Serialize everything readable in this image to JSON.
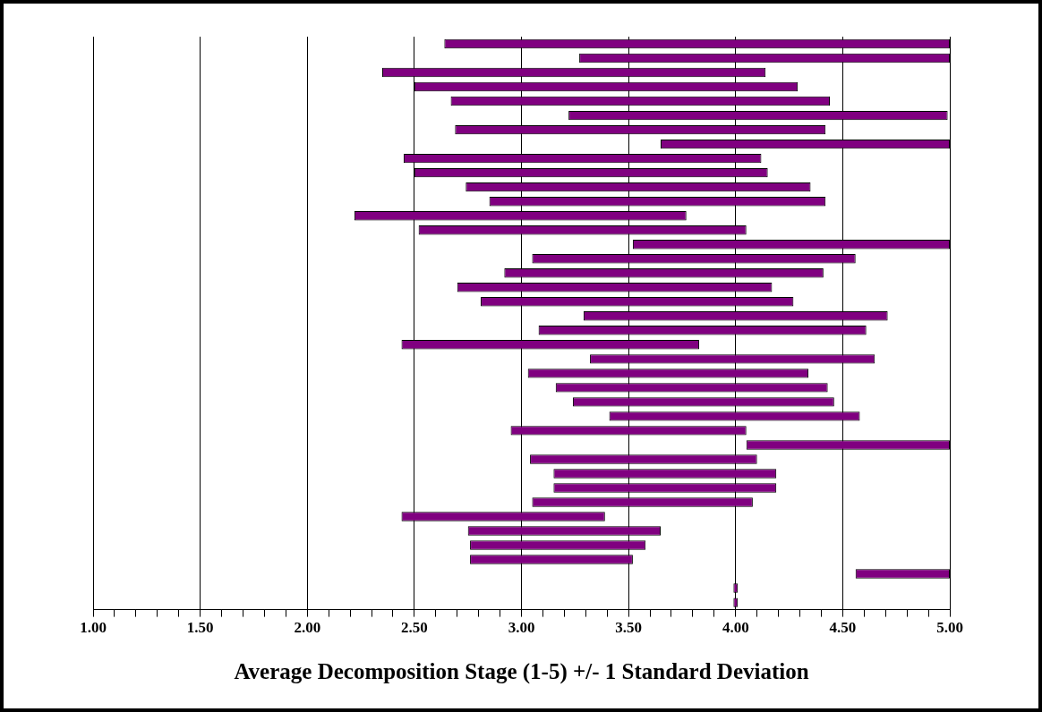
{
  "chart_data": {
    "type": "bar",
    "orientation": "horizontal",
    "xlabel": "Average Decomposition Stage (1-5) +/- 1 Standard Deviation",
    "categories": [
      null,
      null,
      null,
      null,
      null,
      null,
      null,
      null,
      null,
      null,
      null,
      null,
      null,
      null,
      null,
      null,
      null,
      null,
      null,
      null,
      null,
      null,
      null,
      null,
      null,
      null,
      null,
      null,
      null,
      null,
      null,
      null,
      null,
      null,
      null,
      null,
      null,
      null,
      null,
      null
    ],
    "base": [
      2.64,
      3.27,
      2.35,
      2.5,
      2.67,
      3.22,
      2.69,
      3.65,
      2.45,
      2.5,
      2.74,
      2.85,
      2.22,
      2.52,
      3.52,
      3.05,
      2.92,
      2.7,
      2.81,
      3.29,
      3.08,
      2.44,
      3.32,
      3.03,
      3.16,
      3.24,
      3.41,
      2.95,
      4.05,
      3.04,
      3.15,
      3.15,
      3.05,
      2.44,
      2.75,
      2.76,
      2.76,
      4.56,
      3.99,
      3.99
    ],
    "values": [
      2.36,
      1.73,
      1.79,
      1.79,
      1.77,
      1.77,
      1.73,
      1.35,
      1.67,
      1.65,
      1.61,
      1.57,
      1.55,
      1.53,
      1.48,
      1.51,
      1.49,
      1.47,
      1.46,
      1.42,
      1.53,
      1.39,
      1.33,
      1.31,
      1.27,
      1.22,
      1.17,
      1.1,
      0.95,
      1.06,
      1.04,
      1.04,
      1.03,
      0.95,
      0.9,
      0.82,
      0.76,
      0.44,
      0.02,
      0.02
    ],
    "color": "#800080",
    "xlim": [
      1,
      5
    ],
    "xticks": [
      "1.00",
      {
        "value": 1.1,
        "label": null
      },
      {
        "value": 1.2,
        "label": null
      },
      {
        "value": 1.3,
        "label": null
      },
      {
        "value": 1.4,
        "label": null
      },
      {
        "value": 1.5,
        "label": "1.50"
      },
      {
        "value": 1.6,
        "label": null
      },
      {
        "value": 1.7,
        "label": null
      },
      {
        "value": 1.8,
        "label": null
      },
      {
        "value": 1.9,
        "label": null
      },
      {
        "value": 2,
        "label": "2.00"
      },
      {
        "value": 2.1,
        "label": null
      },
      {
        "value": 2.2,
        "label": null
      },
      {
        "value": 2.3,
        "label": null
      },
      {
        "value": 2.4,
        "label": null
      },
      {
        "value": 2.5,
        "label": "2.50"
      },
      {
        "value": 2.6,
        "label": null
      },
      {
        "value": 2.7,
        "label": null
      },
      {
        "value": 2.8,
        "label": null
      },
      {
        "value": 2.9,
        "label": null
      },
      {
        "value": 3,
        "label": "3.00"
      },
      {
        "value": 3.1,
        "label": null
      },
      {
        "value": 3.2,
        "label": null
      },
      {
        "value": 3.3,
        "label": null
      },
      {
        "value": 3.4,
        "label": null
      },
      {
        "value": 3.5,
        "label": "3.50"
      },
      {
        "value": 3.6,
        "label": null
      },
      {
        "value": 3.7,
        "label": null
      },
      {
        "value": 3.8,
        "label": null
      },
      {
        "value": 3.9,
        "label": null
      },
      {
        "value": 4,
        "label": "4.00"
      },
      {
        "value": 4.1,
        "label": null
      },
      {
        "value": 4.2,
        "label": null
      },
      {
        "value": 4.3,
        "label": null
      },
      {
        "value": 4.4,
        "label": null
      },
      {
        "value": 4.5,
        "label": "4.50"
      },
      {
        "value": 4.6,
        "label": null
      },
      {
        "value": 4.7,
        "label": null
      },
      {
        "value": 4.8,
        "label": null
      },
      {
        "value": 4.9,
        "label": null
      },
      {
        "value": 5,
        "label": "5.00"
      }
    ],
    "grid": "x"
  }
}
